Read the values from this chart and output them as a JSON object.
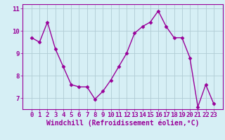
{
  "x": [
    0,
    1,
    2,
    3,
    4,
    5,
    6,
    7,
    8,
    9,
    10,
    11,
    12,
    13,
    14,
    15,
    16,
    17,
    18,
    19,
    20,
    21,
    22,
    23
  ],
  "y": [
    9.7,
    9.5,
    10.4,
    9.2,
    8.4,
    7.6,
    7.5,
    7.5,
    6.95,
    7.3,
    7.8,
    8.4,
    9.0,
    9.9,
    10.2,
    10.4,
    10.9,
    10.2,
    9.7,
    9.7,
    8.8,
    6.6,
    7.6,
    6.75
  ],
  "line_color": "#990099",
  "marker": "D",
  "marker_size": 2.5,
  "linewidth": 1.0,
  "background_color": "#d6eff5",
  "grid_color": "#b0ccd4",
  "xlabel": "Windchill (Refroidissement éolien,°C)",
  "xlabel_color": "#990099",
  "tick_color": "#990099",
  "ylim": [
    6.5,
    11.2
  ],
  "yticks": [
    7,
    8,
    9,
    10,
    11
  ],
  "xticks": [
    0,
    1,
    2,
    3,
    4,
    5,
    6,
    7,
    8,
    9,
    10,
    11,
    12,
    13,
    14,
    15,
    16,
    17,
    18,
    19,
    20,
    21,
    22,
    23
  ],
  "font_size": 6.5,
  "xlabel_fontsize": 7.0
}
